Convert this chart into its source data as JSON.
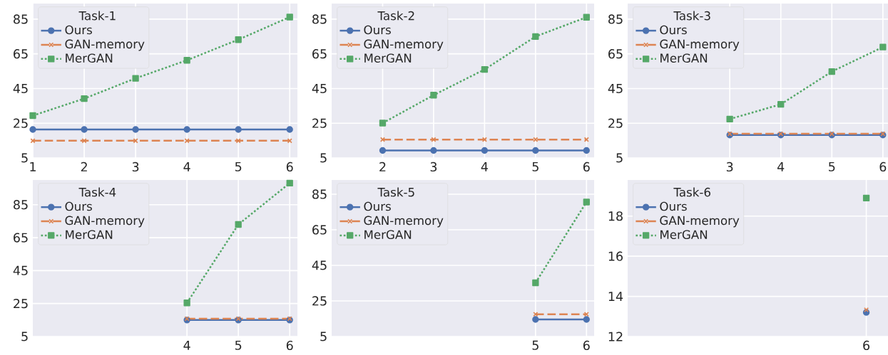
{
  "chart_data": [
    {
      "type": "line",
      "legend_title": "Task-1",
      "legend": "top left",
      "grid": true,
      "xlim": [
        1,
        6.15
      ],
      "ylim": [
        5,
        94
      ],
      "xticks": [
        1,
        2,
        3,
        4,
        5,
        6
      ],
      "yticks": [
        5,
        25,
        45,
        65,
        85
      ],
      "series": [
        {
          "name": "Ours",
          "color": "#4c72b0",
          "marker": "circle",
          "line_style": "solid",
          "x": [
            1,
            2,
            3,
            4,
            5,
            6
          ],
          "values": [
            21.4,
            21.4,
            21.4,
            21.4,
            21.4,
            21.4
          ]
        },
        {
          "name": "GAN-memory",
          "color": "#dd8452",
          "marker": "cross",
          "line_style": "dashed",
          "x": [
            1,
            2,
            3,
            4,
            5,
            6
          ],
          "values": [
            14.9,
            14.9,
            14.9,
            14.9,
            14.9,
            14.9
          ]
        },
        {
          "name": "MerGAN",
          "color": "#55a868",
          "marker": "square",
          "line_style": "dotted",
          "x": [
            1,
            2,
            3,
            4,
            5,
            6
          ],
          "values": [
            29.4,
            39.2,
            50.9,
            61.3,
            73.2,
            86.2
          ]
        }
      ]
    },
    {
      "type": "line",
      "legend_title": "Task-2",
      "legend": "top left",
      "grid": true,
      "xlim": [
        1,
        6.15
      ],
      "ylim": [
        5,
        94
      ],
      "xticks": [
        2,
        3,
        4,
        5,
        6
      ],
      "yticks": [
        5,
        25,
        45,
        65,
        85
      ],
      "series": [
        {
          "name": "Ours",
          "color": "#4c72b0",
          "marker": "circle",
          "line_style": "solid",
          "x": [
            2,
            3,
            4,
            5,
            6
          ],
          "values": [
            9.3,
            9.3,
            9.3,
            9.3,
            9.3
          ]
        },
        {
          "name": "GAN-memory",
          "color": "#dd8452",
          "marker": "cross",
          "line_style": "dashed",
          "x": [
            2,
            3,
            4,
            5,
            6
          ],
          "values": [
            15.6,
            15.6,
            15.6,
            15.6,
            15.6
          ]
        },
        {
          "name": "MerGAN",
          "color": "#55a868",
          "marker": "square",
          "line_style": "dotted",
          "x": [
            2,
            3,
            4,
            5,
            6
          ],
          "values": [
            25.1,
            41.2,
            56,
            75,
            86.1
          ]
        }
      ]
    },
    {
      "type": "line",
      "legend_title": "Task-3",
      "legend": "top left",
      "grid": true,
      "xlim": [
        1,
        6.1
      ],
      "ylim": [
        5,
        94
      ],
      "xticks": [
        3,
        4,
        5,
        6
      ],
      "yticks": [
        5,
        25,
        45,
        65,
        85
      ],
      "series": [
        {
          "name": "Ours",
          "color": "#4c72b0",
          "marker": "circle",
          "line_style": "solid",
          "x": [
            3,
            4,
            5,
            6
          ],
          "values": [
            18.2,
            18.2,
            18.2,
            18.2
          ]
        },
        {
          "name": "GAN-memory",
          "color": "#dd8452",
          "marker": "cross",
          "line_style": "dashed",
          "x": [
            3,
            4,
            5,
            6
          ],
          "values": [
            18.9,
            18.9,
            18.9,
            18.9
          ]
        },
        {
          "name": "MerGAN",
          "color": "#55a868",
          "marker": "square",
          "line_style": "dotted",
          "x": [
            3,
            4,
            5,
            6
          ],
          "values": [
            27.4,
            35.9,
            54.8,
            68.9
          ]
        }
      ]
    },
    {
      "type": "line",
      "legend_title": "Task-4",
      "legend": "top left",
      "grid": true,
      "xlim": [
        1,
        6.15
      ],
      "ylim": [
        5,
        100
      ],
      "xticks": [
        4,
        5,
        6
      ],
      "yticks": [
        5,
        25,
        45,
        65,
        85
      ],
      "series": [
        {
          "name": "Ours",
          "color": "#4c72b0",
          "marker": "circle",
          "line_style": "solid",
          "x": [
            4,
            5,
            6
          ],
          "values": [
            15,
            15,
            15
          ]
        },
        {
          "name": "GAN-memory",
          "color": "#dd8452",
          "marker": "cross",
          "line_style": "dashed",
          "x": [
            4,
            5,
            6
          ],
          "values": [
            15.8,
            15.8,
            15.8
          ]
        },
        {
          "name": "MerGAN",
          "color": "#55a868",
          "marker": "square",
          "line_style": "dotted",
          "x": [
            4,
            5,
            6
          ],
          "values": [
            25.4,
            73,
            98.1
          ]
        }
      ]
    },
    {
      "type": "line",
      "legend_title": "Task-5",
      "legend": "top left",
      "grid": true,
      "xlim": [
        1,
        6.15
      ],
      "ylim": [
        5,
        93
      ],
      "xticks": [
        5,
        6
      ],
      "yticks": [
        5,
        25,
        45,
        65,
        85
      ],
      "series": [
        {
          "name": "Ours",
          "color": "#4c72b0",
          "marker": "circle",
          "line_style": "solid",
          "x": [
            5,
            6
          ],
          "values": [
            14.6,
            14.6
          ]
        },
        {
          "name": "GAN-memory",
          "color": "#dd8452",
          "marker": "cross",
          "line_style": "dashed",
          "x": [
            5,
            6
          ],
          "values": [
            17.5,
            17.5
          ]
        },
        {
          "name": "MerGAN",
          "color": "#55a868",
          "marker": "square",
          "line_style": "dotted",
          "x": [
            5,
            6
          ],
          "values": [
            35.2,
            80.6
          ]
        }
      ]
    },
    {
      "type": "line",
      "legend_title": "Task-6",
      "legend": "top left",
      "grid": true,
      "categories": [
        null,
        null,
        null,
        null,
        null,
        "6"
      ],
      "ylim": [
        12,
        19.8
      ],
      "yticks": [
        12,
        14,
        16,
        18
      ],
      "series": [
        {
          "name": "Ours",
          "color": "#4c72b0",
          "marker": "circle",
          "line_style": "solid",
          "values": [
            null,
            null,
            null,
            null,
            null,
            13.2
          ]
        },
        {
          "name": "GAN-memory",
          "color": "#dd8452",
          "marker": "cross",
          "line_style": "dashed",
          "values": [
            null,
            null,
            null,
            null,
            null,
            13.33
          ]
        },
        {
          "name": "MerGAN",
          "color": "#55a868",
          "marker": "square",
          "line_style": "dotted",
          "values": [
            null,
            null,
            null,
            null,
            null,
            18.9
          ]
        }
      ]
    }
  ]
}
